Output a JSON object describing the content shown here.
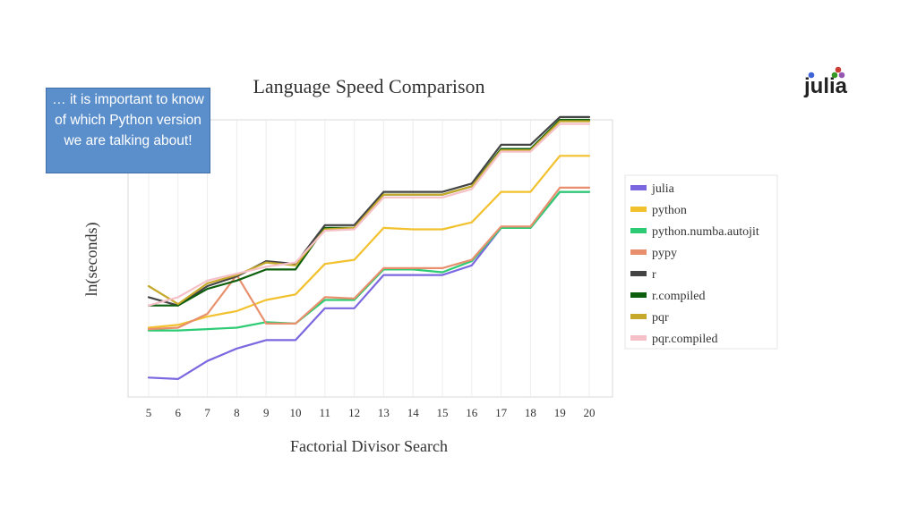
{
  "callout": {
    "text": "… it is important to know of which Python version we are talking about!"
  },
  "logo": {
    "text": "julia"
  },
  "chart_data": {
    "type": "line",
    "title": "Language Speed Comparison",
    "xlabel": "Factorial Divisor Search",
    "ylabel": "ln(seconds)",
    "x": [
      5,
      6,
      7,
      8,
      9,
      10,
      11,
      12,
      13,
      14,
      15,
      16,
      17,
      18,
      19,
      20
    ],
    "ylim": [
      -1,
      9
    ],
    "grid": true,
    "legend_position": "right",
    "series": [
      {
        "name": "julia",
        "color": "#7b68e0",
        "values": [
          -0.3,
          -0.35,
          0.3,
          0.75,
          1.05,
          1.05,
          2.2,
          2.2,
          3.4,
          3.4,
          3.4,
          3.75,
          5.1,
          5.1,
          6.4,
          6.4
        ]
      },
      {
        "name": "python",
        "color": "#f2c12e",
        "values": [
          1.5,
          1.6,
          1.9,
          2.1,
          2.5,
          2.7,
          3.8,
          3.95,
          5.1,
          5.05,
          5.05,
          5.3,
          6.4,
          6.4,
          7.7,
          7.7
        ]
      },
      {
        "name": "python.numba.autojit",
        "color": "#2dcc74",
        "values": [
          1.4,
          1.4,
          1.45,
          1.5,
          1.7,
          1.65,
          2.5,
          2.5,
          3.6,
          3.6,
          3.5,
          3.9,
          5.1,
          5.1,
          6.4,
          6.4
        ]
      },
      {
        "name": "pypy",
        "color": "#e8906e",
        "values": [
          1.45,
          1.5,
          2.0,
          3.4,
          1.65,
          1.65,
          2.6,
          2.55,
          3.65,
          3.65,
          3.65,
          3.95,
          5.15,
          5.15,
          6.55,
          6.55
        ]
      },
      {
        "name": "r",
        "color": "#444444",
        "values": [
          2.6,
          2.3,
          3.0,
          3.35,
          3.9,
          3.8,
          5.2,
          5.2,
          6.4,
          6.4,
          6.4,
          6.7,
          8.1,
          8.1,
          9.1,
          9.1
        ]
      },
      {
        "name": "r.compiled",
        "color": "#0d5f0d",
        "values": [
          2.3,
          2.3,
          2.9,
          3.2,
          3.6,
          3.6,
          5.1,
          5.1,
          6.3,
          6.3,
          6.3,
          6.6,
          7.95,
          7.95,
          9.0,
          9.0
        ]
      },
      {
        "name": "pqr",
        "color": "#c6a92a",
        "values": [
          3.0,
          2.35,
          3.1,
          3.4,
          3.85,
          3.75,
          5.05,
          5.1,
          6.3,
          6.3,
          6.3,
          6.6,
          7.9,
          7.9,
          8.95,
          8.95
        ]
      },
      {
        "name": "pqr.compiled",
        "color": "#f6c0c8",
        "values": [
          2.3,
          2.6,
          3.2,
          3.45,
          3.7,
          3.85,
          5.0,
          5.05,
          6.2,
          6.2,
          6.2,
          6.5,
          7.85,
          7.85,
          8.85,
          8.85
        ]
      }
    ]
  }
}
